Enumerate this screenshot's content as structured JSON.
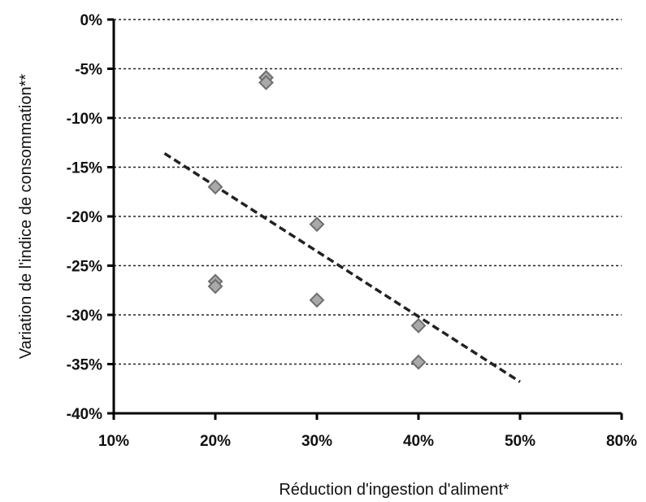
{
  "chart_data": {
    "type": "scatter",
    "title": "",
    "xlabel": "Réduction d'ingestion d'aliment*",
    "ylabel": "Variation de l'indice de consommation**",
    "xlim": [
      10,
      80
    ],
    "ylim": [
      -40,
      0
    ],
    "x_ticks": [
      10,
      20,
      30,
      40,
      50,
      80
    ],
    "y_ticks": [
      0,
      -5,
      -10,
      -15,
      -20,
      -25,
      -30,
      -35,
      -40
    ],
    "x_tick_labels": [
      "10%",
      "20%",
      "30%",
      "40%",
      "50%",
      "80%"
    ],
    "y_tick_labels": [
      "0%",
      "-5%",
      "-10%",
      "-15%",
      "-20%",
      "-25%",
      "-30%",
      "-35%",
      "-40%"
    ],
    "grid": "horizontal dashed",
    "legend": "none",
    "points": [
      {
        "x": 25,
        "y": -5.9
      },
      {
        "x": 25,
        "y": -6.4
      },
      {
        "x": 20,
        "y": -17.0
      },
      {
        "x": 30,
        "y": -20.8
      },
      {
        "x": 20,
        "y": -26.6
      },
      {
        "x": 20,
        "y": -27.1
      },
      {
        "x": 30,
        "y": -28.5
      },
      {
        "x": 40,
        "y": -31.1
      },
      {
        "x": 40,
        "y": -34.8
      }
    ],
    "trendline": {
      "x": [
        15,
        50
      ],
      "y": [
        -13.6,
        -36.8
      ]
    },
    "colors": {
      "marker_fill": "#a9a9a9",
      "marker_edge": "#6e6e6e",
      "trendline": "#222222"
    }
  }
}
